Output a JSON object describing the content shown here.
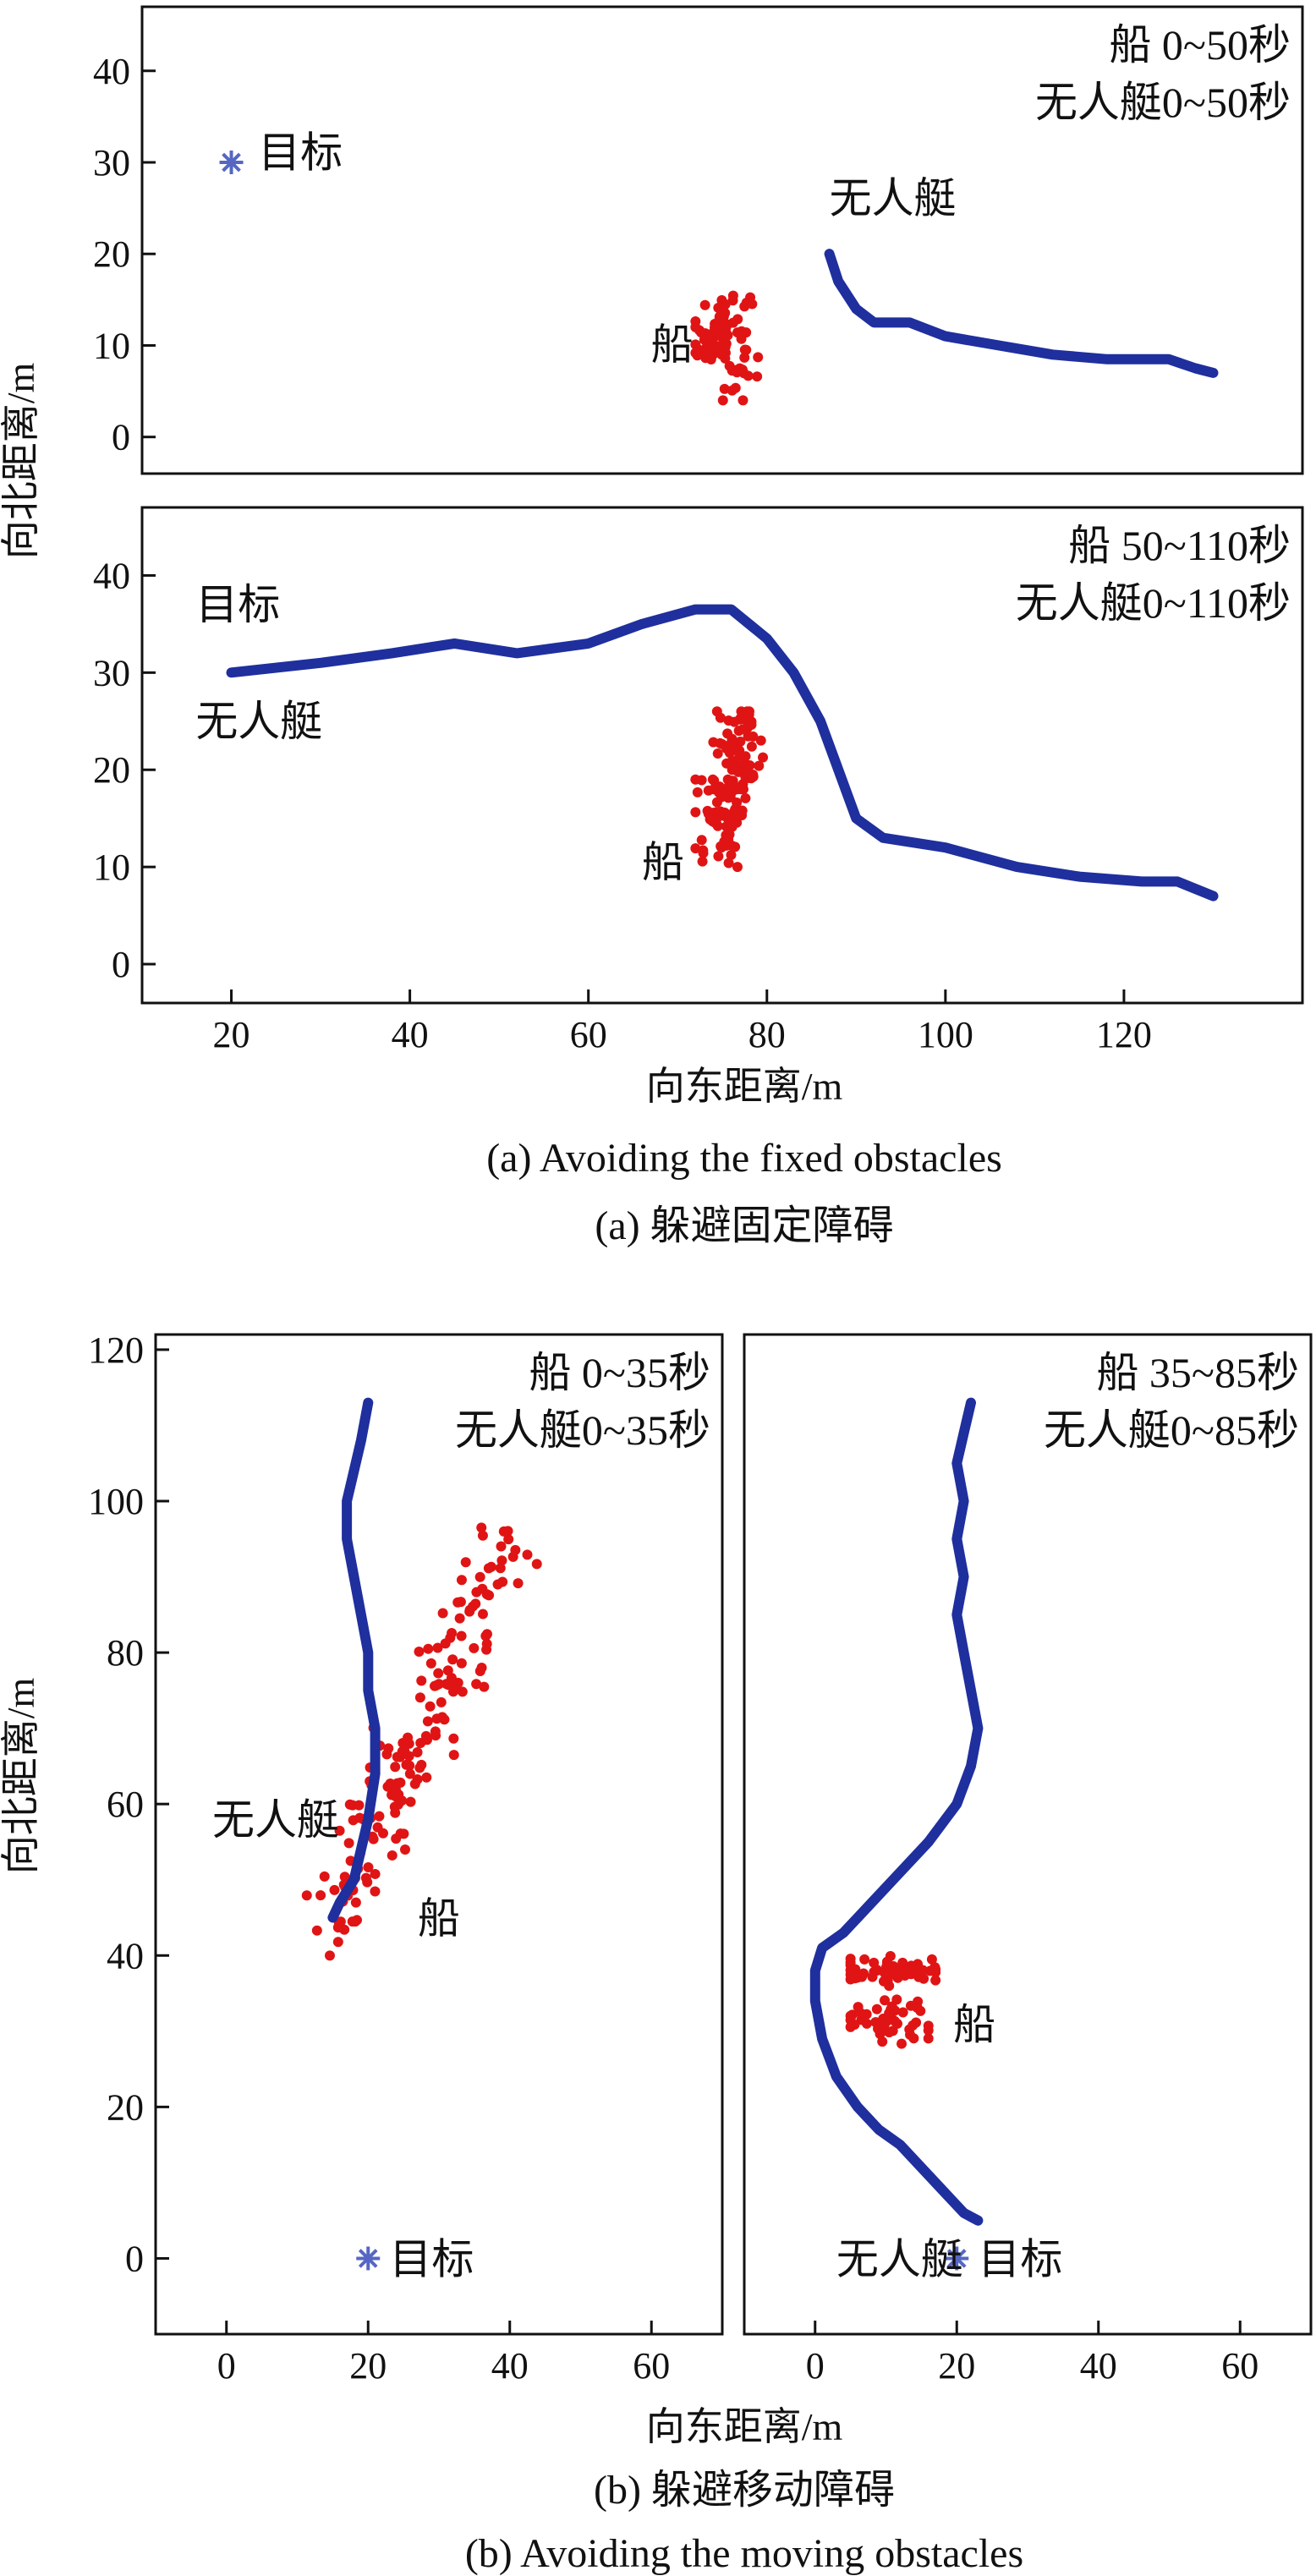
{
  "figure_a": {
    "ylabel": "向北距离/m",
    "xlabel": "向东距离/m",
    "caption_en": "(a) Avoiding the fixed obstacles",
    "caption_cn": "(a) 躲避固定障碍"
  },
  "figure_b": {
    "ylabel": "向北距离/m",
    "xlabel": "向东距离/m",
    "caption_cn": "(b) 躲避移动障碍",
    "caption_en": "(b) Avoiding the moving obstacles"
  },
  "colors": {
    "usv_path": "#1f2f9e",
    "ship_points": "#e01414",
    "target_marker": "#5567c2"
  },
  "chart_data": [
    {
      "id": "a1",
      "type": "scatter",
      "xlim": [
        10,
        140
      ],
      "ylim": [
        -4,
        47
      ],
      "x_ticks": [],
      "y_ticks": [
        0,
        10,
        20,
        30,
        40
      ],
      "legend_lines": [
        "船 0~50秒",
        "无人艇0~50秒"
      ],
      "annotations": [
        {
          "text": "目标",
          "x": 23,
          "y": 29.5
        },
        {
          "text": "无人艇",
          "x": 87,
          "y": 24.5
        },
        {
          "text": "船",
          "x": 67,
          "y": 8.5
        }
      ],
      "target": {
        "x": 20,
        "y": 30
      },
      "series": [
        {
          "kind": "usv",
          "x": [
            87,
            88,
            90,
            92,
            96,
            100,
            106,
            112,
            118,
            122,
            125,
            128,
            130
          ],
          "y": [
            20,
            17,
            14,
            12.5,
            12.5,
            11,
            10,
            9,
            8.5,
            8.5,
            8.5,
            7.5,
            7
          ]
        },
        {
          "kind": "ship_cloud",
          "center": [
            75,
            11
          ],
          "spread": [
            3.5,
            6
          ],
          "count": 90,
          "x_range": [
            72,
            79
          ],
          "y_range": [
            4,
            18
          ]
        }
      ]
    },
    {
      "id": "a2",
      "type": "scatter",
      "xlim": [
        10,
        140
      ],
      "ylim": [
        -4,
        47
      ],
      "x_ticks": [
        20,
        40,
        60,
        80,
        100,
        120
      ],
      "y_ticks": [
        0,
        10,
        20,
        30,
        40
      ],
      "legend_lines": [
        "船 50~110秒",
        "无人艇0~110秒"
      ],
      "annotations": [
        {
          "text": "目标",
          "x": 16,
          "y": 35.5
        },
        {
          "text": "无人艇",
          "x": 16,
          "y": 23.5
        },
        {
          "text": "船",
          "x": 66,
          "y": 9
        }
      ],
      "target": null,
      "series": [
        {
          "kind": "usv",
          "x": [
            20,
            30,
            38,
            45,
            52,
            60,
            66,
            72,
            76,
            80,
            83,
            86,
            88,
            90,
            93,
            100,
            108,
            115,
            122,
            126,
            130
          ],
          "y": [
            30,
            31,
            32,
            33,
            32,
            33,
            35,
            36.5,
            36.5,
            33.5,
            30,
            25,
            20,
            15,
            13,
            12,
            10,
            9,
            8.5,
            8.5,
            7
          ]
        },
        {
          "kind": "ship_cloud",
          "center": [
            77,
            22
          ],
          "spread": [
            3,
            6
          ],
          "count": 70,
          "x_range": [
            74,
            81
          ],
          "y_range": [
            18,
            26
          ]
        },
        {
          "kind": "ship_cloud",
          "center": [
            75,
            15
          ],
          "spread": [
            3,
            5
          ],
          "count": 70,
          "x_range": [
            72,
            79
          ],
          "y_range": [
            10,
            19
          ]
        }
      ]
    },
    {
      "id": "b1",
      "type": "scatter",
      "xlim": [
        -10,
        70
      ],
      "ylim": [
        -10,
        122
      ],
      "x_ticks": [
        0,
        20,
        40,
        60
      ],
      "y_ticks": [
        0,
        20,
        40,
        60,
        80,
        100,
        120
      ],
      "legend_lines": [
        "船 0~35秒",
        "无人艇0~35秒"
      ],
      "annotations": [
        {
          "text": "无人艇",
          "x": -2,
          "y": 56
        },
        {
          "text": "船",
          "x": 27,
          "y": 43
        },
        {
          "text": "目标",
          "x": 23,
          "y": -2
        }
      ],
      "target": {
        "x": 20,
        "y": 0
      },
      "series": [
        {
          "kind": "usv",
          "x": [
            20,
            19,
            18,
            17,
            17,
            18,
            19,
            20,
            20,
            21,
            21,
            20,
            19,
            18,
            16,
            15
          ],
          "y": [
            113,
            108,
            104,
            100,
            95,
            90,
            85,
            80,
            75,
            70,
            64,
            58,
            54,
            50,
            47,
            45
          ]
        },
        {
          "kind": "ship_band",
          "x_start": 14,
          "y_start": 43,
          "x_end": 40,
          "y_end": 96,
          "count": 170,
          "width": 2.5
        }
      ]
    },
    {
      "id": "b2",
      "type": "scatter",
      "xlim": [
        -10,
        70
      ],
      "ylim": [
        -10,
        122
      ],
      "x_ticks": [
        0,
        20,
        40,
        60
      ],
      "y_ticks": [],
      "legend_lines": [
        "船 35~85秒",
        "无人艇0~85秒"
      ],
      "annotations": [
        {
          "text": "船",
          "x": 19.5,
          "y": 29
        },
        {
          "text": "无人艇",
          "x": 3,
          "y": -2
        },
        {
          "text": "目标",
          "x": 23,
          "y": -2
        }
      ],
      "target": {
        "x": 20,
        "y": 0
      },
      "series": [
        {
          "kind": "usv",
          "x": [
            22,
            21,
            20,
            21,
            20,
            21,
            20,
            21,
            22,
            23,
            22,
            20,
            16,
            12,
            8,
            4,
            1,
            0,
            0,
            1,
            3,
            6,
            9,
            12,
            15,
            18,
            21,
            23
          ],
          "y": [
            113,
            109,
            105,
            100,
            95,
            90,
            85,
            80,
            75,
            70,
            65,
            60,
            55,
            51,
            47,
            43,
            41,
            38,
            34,
            29,
            24,
            20,
            17,
            15,
            12,
            9,
            6,
            5
          ]
        },
        {
          "kind": "ship_cloud",
          "center": [
            11,
            38
          ],
          "spread": [
            10,
            2
          ],
          "count": 60,
          "x_range": [
            5,
            17
          ],
          "y_range": [
            36,
            42
          ]
        },
        {
          "kind": "ship_cloud",
          "center": [
            11,
            31
          ],
          "spread": [
            8,
            4
          ],
          "count": 45,
          "x_range": [
            5,
            16
          ],
          "y_range": [
            26,
            35
          ]
        }
      ]
    }
  ]
}
